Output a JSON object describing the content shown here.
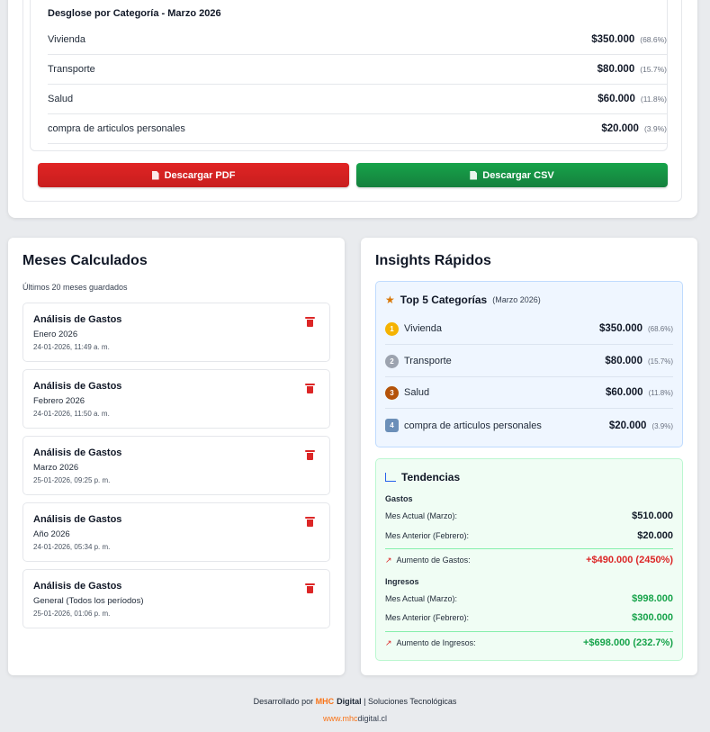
{
  "breakdown": {
    "title": "Desglose por Categoría - Marzo 2026",
    "rows": [
      {
        "name": "Vivienda",
        "amount": "$350.000",
        "pct": "(68.6%)"
      },
      {
        "name": "Transporte",
        "amount": "$80.000",
        "pct": "(15.7%)"
      },
      {
        "name": "Salud",
        "amount": "$60.000",
        "pct": "(11.8%)"
      },
      {
        "name": "compra de articulos personales",
        "amount": "$20.000",
        "pct": "(3.9%)"
      }
    ],
    "pdf_label": "Descargar PDF",
    "csv_label": "Descargar CSV"
  },
  "months": {
    "title": "Meses Calculados",
    "subtitle": "Últimos 20 meses guardados",
    "items": [
      {
        "title": "Análisis de Gastos",
        "period": "Enero 2026",
        "date": "24-01-2026, 11:49 a. m."
      },
      {
        "title": "Análisis de Gastos",
        "period": "Febrero 2026",
        "date": "24-01-2026, 11:50 a. m."
      },
      {
        "title": "Análisis de Gastos",
        "period": "Marzo 2026",
        "date": "25-01-2026, 09:25 p. m."
      },
      {
        "title": "Análisis de Gastos",
        "period": "Año 2026",
        "date": "24-01-2026, 05:34 p. m."
      },
      {
        "title": "Análisis de Gastos",
        "period": "General (Todos los períodos)",
        "date": "25-01-2026, 01:06 p. m."
      }
    ]
  },
  "insights": {
    "title": "Insights Rápidos",
    "top5": {
      "title": "Top 5 Categorías",
      "period": "(Marzo 2026)",
      "rows": [
        {
          "rank": "1",
          "name": "Vivienda",
          "amount": "$350.000",
          "pct": "(68.6%)"
        },
        {
          "rank": "2",
          "name": "Transporte",
          "amount": "$80.000",
          "pct": "(15.7%)"
        },
        {
          "rank": "3",
          "name": "Salud",
          "amount": "$60.000",
          "pct": "(11.8%)"
        },
        {
          "rank": "4",
          "name": "compra de articulos personales",
          "amount": "$20.000",
          "pct": "(3.9%)"
        }
      ]
    },
    "trends": {
      "title": "Tendencias",
      "gastos_label": "Gastos",
      "gastos_current_label": "Mes Actual (Marzo):",
      "gastos_current": "$510.000",
      "gastos_prev_label": "Mes Anterior (Febrero):",
      "gastos_prev": "$20.000",
      "gastos_increase_label": "Aumento de Gastos:",
      "gastos_increase": "+$490.000 (2450%)",
      "ingresos_label": "Ingresos",
      "ingresos_current_label": "Mes Actual (Marzo):",
      "ingresos_current": "$998.000",
      "ingresos_prev_label": "Mes Anterior (Febrero):",
      "ingresos_prev": "$300.000",
      "ingresos_increase_label": "Aumento de Ingresos:",
      "ingresos_increase": "+$698.000 (232.7%)"
    }
  },
  "footer": {
    "prefix": "Desarrollado por",
    "brand_mhc": "MHC",
    "brand_digital": "Digital",
    "suffix": "| Soluciones Tecnológicas",
    "url_www": "www.",
    "url_mhc": "mhc",
    "url_rest": "digital.cl"
  },
  "colors": {
    "pdf_button": "#dc2626",
    "csv_button": "#16a34a",
    "brand_orange": "#f97316",
    "increase_red": "#dc2626",
    "increase_green": "#16a34a"
  }
}
